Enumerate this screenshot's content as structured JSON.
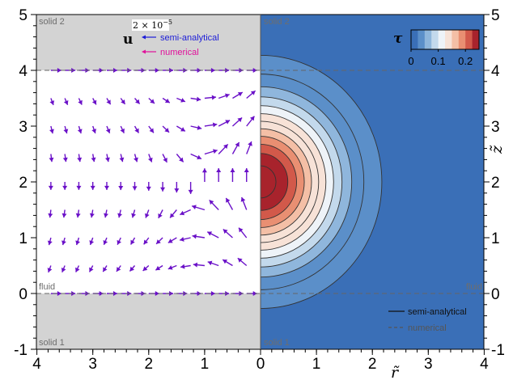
{
  "figure": {
    "left_panel_legend": {
      "scale_label": "2 × 10",
      "scale_exponent": "−5",
      "vector_symbol": "u",
      "items": [
        {
          "label": "semi-analytical",
          "color": "#1c1cd8"
        },
        {
          "label": "numerical",
          "color": "#e0109a"
        }
      ]
    },
    "right_panel_legend": {
      "items": [
        {
          "label": "semi-analytical",
          "line": "solid",
          "color": "#111111"
        },
        {
          "label": "numerical",
          "line": "dashed",
          "color": "#555555"
        }
      ]
    },
    "colorbar": {
      "symbol": "τ",
      "ticks": [
        "0",
        "0.1",
        "0.2"
      ],
      "colors": [
        "#3a6fb7",
        "#5b8fc9",
        "#8fb6dc",
        "#c3d9ec",
        "#eef3f8",
        "#f7e2d7",
        "#f4bfa6",
        "#e98f72",
        "#d2594a",
        "#a8232c"
      ]
    },
    "region_labels": {
      "solid_top": "solid 2",
      "solid_bottom": "solid 1",
      "fluid": "fluid"
    },
    "axes": {
      "x_label": "r̃",
      "y_label": "z̃",
      "x_ticks_left": [
        "4",
        "3",
        "2",
        "1",
        "0"
      ],
      "x_ticks_right": [
        "1",
        "2",
        "3",
        "4"
      ],
      "y_ticks": [
        "-1",
        "0",
        "1",
        "2",
        "3",
        "4",
        "5"
      ]
    },
    "colors": {
      "solid_fill": "#d3d3d3",
      "arrow_color": "#6a10c8",
      "dashed_line": "#666666",
      "contour_line": "#333333"
    }
  },
  "chart_data": [
    {
      "type": "quiver",
      "panel": "left",
      "xlabel": "r̃",
      "ylabel": "z̃",
      "xlim": [
        4,
        0
      ],
      "ylim": [
        -1,
        5
      ],
      "fluid_band": [
        0,
        4
      ],
      "series": [
        {
          "name": "semi-analytical"
        },
        {
          "name": "numerical"
        }
      ],
      "rows_z": [
        0,
        0.5,
        1,
        1.5,
        2,
        2.5,
        3,
        3.5,
        4
      ],
      "cols_r": [
        3.75,
        3.5,
        3.25,
        3.0,
        2.75,
        2.5,
        2.25,
        2.0,
        1.75,
        1.5,
        1.25,
        1.0,
        0.75,
        0.5,
        0.25
      ],
      "circulation_center": [
        1.1,
        2.0
      ]
    },
    {
      "type": "contour",
      "panel": "right",
      "xlabel": "r̃",
      "ylabel": "z̃",
      "xlim": [
        0,
        4
      ],
      "ylim": [
        -1,
        5
      ],
      "variable": "τ",
      "color_range": [
        0,
        0.25
      ],
      "peak": {
        "r": 0,
        "z": 2,
        "value": 0.25
      },
      "levels": [
        0.02,
        0.04,
        0.06,
        0.08,
        0.1,
        0.12,
        0.14,
        0.16,
        0.18,
        0.2,
        0.22,
        0.24
      ],
      "series": [
        {
          "name": "semi-analytical"
        },
        {
          "name": "numerical"
        }
      ]
    }
  ]
}
